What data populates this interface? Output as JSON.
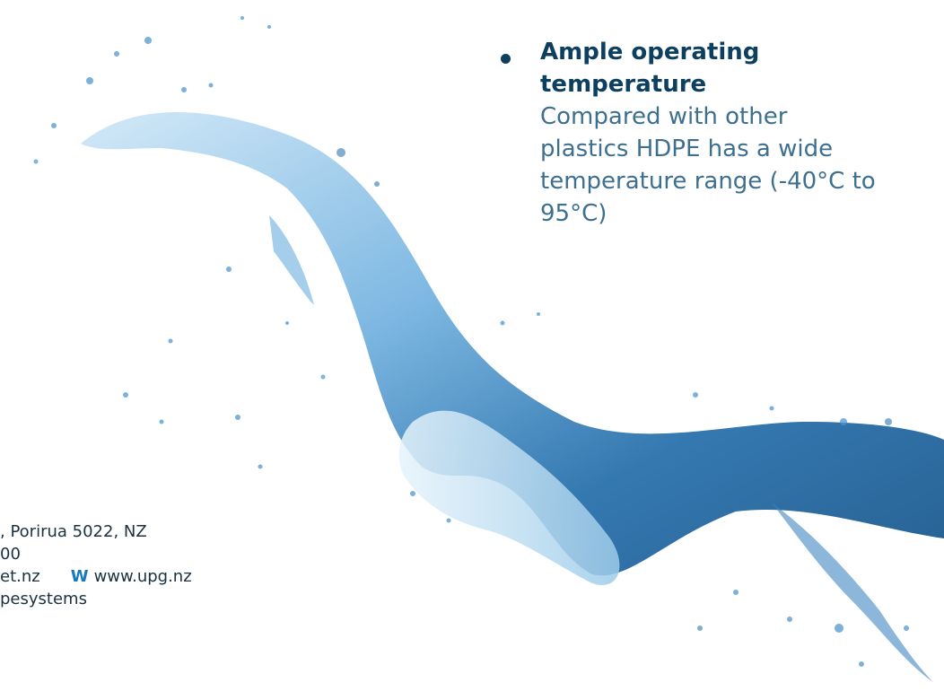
{
  "feature": {
    "heading": "Ample operating temperature",
    "body": "Compared with other plastics HDPE has a wide temperature range (-40°C to 95°C)"
  },
  "contact": {
    "address": ", Porirua 5022, NZ",
    "phone": "00",
    "email": "et.nz",
    "web_label": "W",
    "web_url": "www.upg.nz",
    "social": "pesystems"
  },
  "colors": {
    "heading": "#0d3f5f",
    "body": "#3d6f8f",
    "accent": "#1779c2",
    "water_dark": "#0f4f86",
    "water_light": "#a9d3f0"
  }
}
